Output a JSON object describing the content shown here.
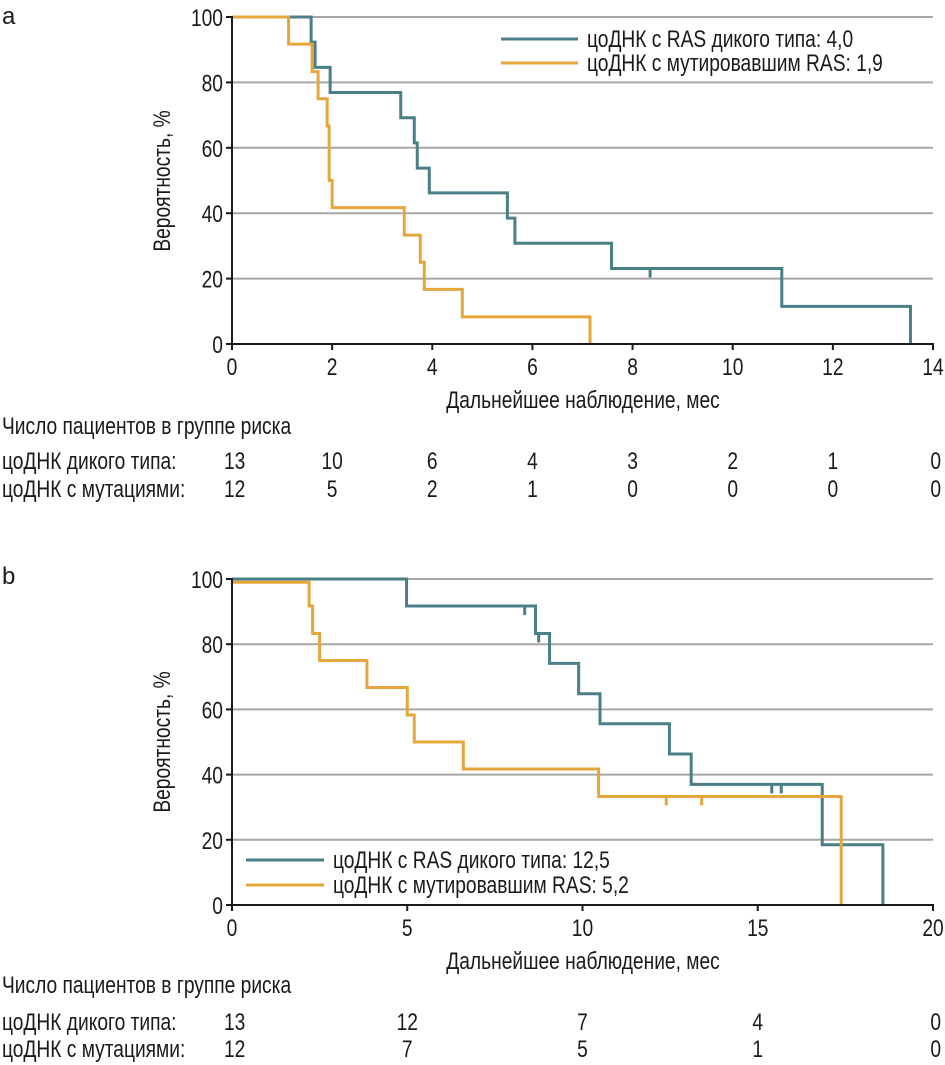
{
  "colors": {
    "wild_type": "#4b7f87",
    "mutant": "#e5a73b",
    "grid": "#a6a6a6",
    "axis": "#1a1a1a"
  },
  "chart_data": [
    {
      "panel_label": "a",
      "type": "line",
      "step": true,
      "xlabel": "Дальнейшее наблюдение, мес",
      "ylabel": "Вероятность, %",
      "xlim": [
        0,
        14
      ],
      "ylim": [
        0,
        100
      ],
      "xticks": [
        "0",
        "2",
        "4",
        "6",
        "8",
        "10",
        "12",
        "14"
      ],
      "xtick_values": [
        0,
        2,
        4,
        6,
        8,
        10,
        12,
        14
      ],
      "yticks": [
        "0",
        "20",
        "40",
        "60",
        "80",
        "100"
      ],
      "ytick_values": [
        0,
        20,
        40,
        60,
        80,
        100
      ],
      "grid": true,
      "legend_position": "top-right",
      "series": [
        {
          "name": "цоДНК с RAS дикого типа: 4,0",
          "color_key": "wild_type",
          "x": [
            0,
            1.58,
            1.66,
            1.96,
            3.37,
            3.64,
            3.7,
            3.94,
            5.5,
            5.65,
            7.58,
            10.98,
            13.55
          ],
          "y": [
            100,
            92.3,
            84.6,
            76.9,
            69.2,
            61.5,
            53.8,
            46.2,
            38.5,
            30.8,
            23.1,
            11.5,
            0
          ],
          "censored_x": [
            8.35
          ],
          "censored_y": [
            23.1
          ]
        },
        {
          "name": "цоДНК с мутировавшим RAS: 1,9",
          "color_key": "mutant",
          "x": [
            0,
            1.13,
            1.6,
            1.72,
            1.9,
            1.94,
            2.0,
            3.44,
            3.76,
            3.84,
            4.6,
            7.15
          ],
          "y": [
            100,
            91.7,
            83.3,
            75.0,
            66.7,
            50.0,
            41.7,
            33.3,
            25.0,
            16.7,
            8.3,
            0
          ],
          "censored_x": [],
          "censored_y": []
        }
      ],
      "risk_table": {
        "title": "Число пациентов в группе риска",
        "rows": [
          {
            "label": "цоДНК дикого типа:",
            "values": [
              "13",
              "10",
              "6",
              "4",
              "3",
              "2",
              "1",
              "0"
            ]
          },
          {
            "label": "цоДНК с мутациями:",
            "values": [
              "12",
              "5",
              "2",
              "1",
              "0",
              "0",
              "0",
              "0"
            ]
          }
        ]
      }
    },
    {
      "panel_label": "b",
      "type": "line",
      "step": true,
      "xlabel": "Дальнейшее наблюдение, мес",
      "ylabel": "Вероятность, %",
      "xlim": [
        0,
        20
      ],
      "ylim": [
        0,
        100
      ],
      "xticks": [
        "0",
        "5",
        "10",
        "15",
        "20"
      ],
      "xtick_values": [
        0,
        5,
        10,
        15,
        20
      ],
      "yticks": [
        "0",
        "20",
        "40",
        "60",
        "80",
        "100"
      ],
      "ytick_values": [
        0,
        20,
        40,
        60,
        80,
        100
      ],
      "grid": true,
      "legend_position": "bottom-left",
      "series": [
        {
          "name": "цоДНК с RAS дикого типа: 12,5",
          "color_key": "wild_type",
          "x": [
            0,
            4.98,
            8.66,
            9.06,
            9.89,
            10.5,
            12.48,
            13.1,
            16.84,
            18.57
          ],
          "y": [
            100,
            91.7,
            83.3,
            74.1,
            64.8,
            55.6,
            46.3,
            37.0,
            18.5,
            0
          ],
          "censored_x": [
            8.35,
            8.75,
            15.4,
            15.67
          ],
          "censored_y": [
            91.7,
            83.3,
            37.0,
            37.0
          ]
        },
        {
          "name": "цоДНК с мутировавшим RAS: 5,2",
          "color_key": "mutant",
          "x": [
            0,
            2.2,
            2.3,
            2.5,
            3.85,
            5.0,
            5.2,
            6.6,
            10.46,
            17.38
          ],
          "y": [
            99,
            91.7,
            83.3,
            75.0,
            66.7,
            58.3,
            50.0,
            41.7,
            33.3,
            0
          ],
          "censored_x": [
            12.39,
            13.4
          ],
          "censored_y": [
            33.3,
            33.3
          ]
        }
      ],
      "risk_table": {
        "title": "Число пациентов в группе риска",
        "rows": [
          {
            "label": "цоДНК дикого типа:",
            "values": [
              "13",
              "12",
              "7",
              "4",
              "0"
            ]
          },
          {
            "label": "цоДНК с мутациями:",
            "values": [
              "12",
              "7",
              "5",
              "1",
              "0"
            ]
          }
        ]
      }
    }
  ]
}
